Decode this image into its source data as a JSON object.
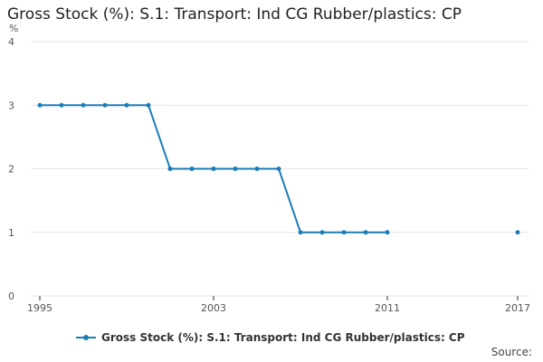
{
  "title": "Gross Stock (%): S.1: Transport: Ind CG Rubber/plastics: CP",
  "source_label": "Source:",
  "colors": {
    "series": "#1a7db8",
    "grid": "#e6e6e6",
    "axis": "#333333"
  },
  "chart_data": {
    "type": "line",
    "title": "Gross Stock (%): S.1: Transport: Ind CG Rubber/plastics: CP",
    "ylabel": "%",
    "xlabel": "",
    "xlim": [
      1995,
      2017
    ],
    "ylim": [
      0,
      4
    ],
    "x_ticks": [
      1995,
      2003,
      2011,
      2017
    ],
    "y_ticks": [
      0,
      1,
      2,
      3,
      4
    ],
    "grid": true,
    "legend_position": "bottom",
    "series": [
      {
        "name": "Gross Stock (%): S.1: Transport: Ind CG Rubber/plastics: CP",
        "x": [
          1995,
          1996,
          1997,
          1998,
          1999,
          2000,
          2001,
          2002,
          2003,
          2004,
          2005,
          2006,
          2007,
          2008,
          2009,
          2010,
          2011,
          2017
        ],
        "values": [
          3,
          3,
          3,
          3,
          3,
          3,
          2,
          2,
          2,
          2,
          2,
          2,
          1,
          1,
          1,
          1,
          1,
          1
        ],
        "gaps_after_x": [
          2011
        ]
      }
    ]
  }
}
